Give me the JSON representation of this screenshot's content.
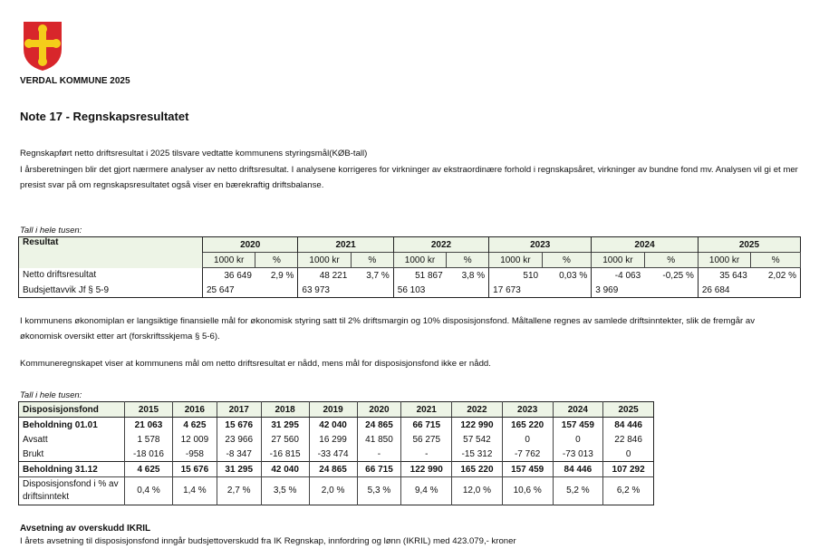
{
  "org": "VERDAL KOMMUNE 2025",
  "title": "Note 17 - Regnskapsresultatet",
  "para1": "Regnskapført netto driftsresultat i 2025 tilsvare vedtatte kommunens styringsmål(KØB-tall)",
  "para2": "I årsberetningen blir det gjort nærmere analyser av netto driftsresultat. I analysene korrigeres for virkninger av ekstraordinære forhold i regnskapsåret, virkninger av bundne fond mv. Analysen vil gi et mer presist svar på om regnskapsresultatet også viser en bærekraftig driftsbalanse.",
  "caption": "Tall i hele tusen:",
  "table1": {
    "header": "Resultat",
    "years": [
      "2020",
      "2021",
      "2022",
      "2023",
      "2024",
      "2025"
    ],
    "unit_kr": "1000 kr",
    "unit_pct": "%",
    "rows": [
      {
        "label": "Netto driftsresultat",
        "values": [
          [
            "36 649",
            "2,9 %"
          ],
          [
            "48 221",
            "3,7 %"
          ],
          [
            "51 867",
            "3,8 %"
          ],
          [
            "510",
            "0,03 %"
          ],
          [
            "-4 063",
            "-0,25 %"
          ],
          [
            "35 643",
            "2,02 %"
          ]
        ]
      },
      {
        "label": "Budsjettavvik Jf  § 5-9",
        "values": [
          "25 647",
          "63 973",
          "56 103",
          "17 673",
          "3 969",
          "26 684"
        ]
      }
    ]
  },
  "para3": "I kommunens økonomiplan er langsiktige finansielle mål for økonomisk styring satt til 2% driftsmargin og 10% disposisjonsfond. Måltallene regnes av samlede driftsinntekter, slik de fremgår av  økonomisk oversikt etter art (forskriftsskjema § 5-6).",
  "para4": "Kommuneregnskapet viser at kommunens mål om netto driftsresultat er nådd, mens mål for disposisjonsfond ikke er nådd.",
  "caption2": "Tall i hele tusen:",
  "table2": {
    "header": "Disposisjonsfond",
    "years": [
      "2015",
      "2016",
      "2017",
      "2018",
      "2019",
      "2020",
      "2021",
      "2022",
      "2023",
      "2024",
      "2025"
    ],
    "rows": [
      {
        "label": "Beholdning 01.01",
        "values": [
          "21 063",
          "4 625",
          "15 676",
          "31 295",
          "42 040",
          "24 865",
          "66 715",
          "122 990",
          "165 220",
          "157 459",
          "84 446"
        ]
      },
      {
        "label": "Avsatt",
        "values": [
          "1 578",
          "12 009",
          "23 966",
          "27 560",
          "16 299",
          "41 850",
          "56 275",
          "57 542",
          "0",
          "0",
          "22 846"
        ]
      },
      {
        "label": "Brukt",
        "values": [
          "-18 016",
          "-958",
          "-8 347",
          "-16 815",
          "-33 474",
          "-",
          "-",
          "-15 312",
          "-7 762",
          "-73 013",
          "0"
        ]
      },
      {
        "label": "Beholdning 31.12",
        "values": [
          "4 625",
          "15 676",
          "31 295",
          "42 040",
          "24 865",
          "66 715",
          "122 990",
          "165 220",
          "157 459",
          "84 446",
          "107 292"
        ]
      },
      {
        "label": "Disposisjonsfond i % av driftsinntekt",
        "values": [
          "0,4 %",
          "1,4 %",
          "2,7 %",
          "3,5 %",
          "2,0 %",
          "5,3 %",
          "9,4 %",
          "12,0 %",
          "10,6 %",
          "5,2 %",
          "6,2 %"
        ]
      }
    ]
  },
  "subheading": "Avsetning av overskudd IKRIL",
  "para5": "I årets avsetning til disposisjonsfond inngår budsjettoverskudd fra IK Regnskap, innfordring og lønn (IKRIL)  med  423.079,- kroner"
}
